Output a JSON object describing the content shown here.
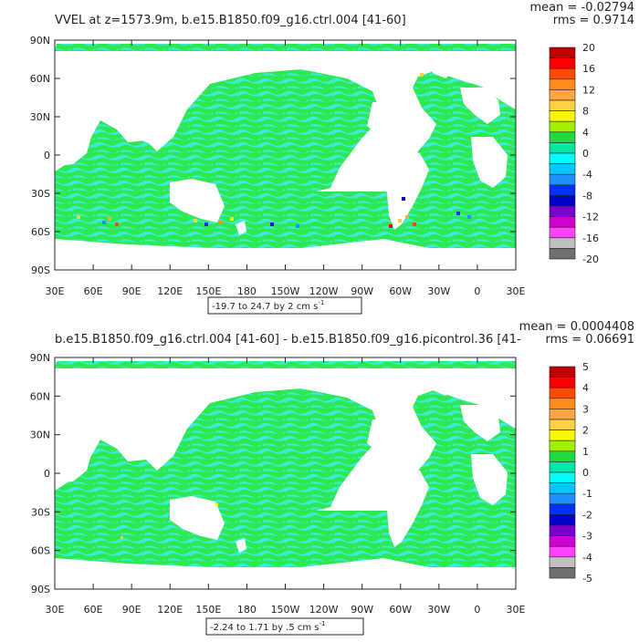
{
  "panels": [
    {
      "title": "VVEL at z=1573.9m, b.e15.B1850.f09_g16.ctrl.004 [41-60]",
      "mean_label": "mean = -0.02794",
      "rms_label": "rms = 0.9714",
      "range_label": "-19.7 to 24.7 by 2 cm s",
      "range_sup": "-1",
      "colorbar_labels": [
        "20",
        "16",
        "12",
        "8",
        "4",
        "0",
        "-4",
        "-8",
        "-12",
        "-16",
        "-20"
      ]
    },
    {
      "title": "b.e15.B1850.f09_g16.ctrl.004 [41-60] - b.e15.B1850.f09_g16.picontrol.36 [41-",
      "mean_label": "mean = 0.0004408",
      "rms_label": "rms = 0.06691",
      "range_label": "-2.24 to 1.71 by .5 cm s",
      "range_sup": "-1",
      "colorbar_labels": [
        "5",
        "4",
        "3",
        "2",
        "1",
        "0",
        "-1",
        "-2",
        "-3",
        "-4",
        "-5"
      ]
    }
  ],
  "lat_labels": [
    "90N",
    "60N",
    "30N",
    "0",
    "30S",
    "60S",
    "90S"
  ],
  "lon_labels": [
    "30E",
    "60E",
    "90E",
    "120E",
    "150E",
    "180",
    "150W",
    "120W",
    "90W",
    "60W",
    "30W",
    "0",
    "30E"
  ],
  "colorbar_colors": [
    "#c00000",
    "#ff0000",
    "#ff4a00",
    "#ff8c1a",
    "#ffa640",
    "#ffd040",
    "#f8f800",
    "#a0f000",
    "#20d840",
    "#00e8a8",
    "#00ffff",
    "#00c8ff",
    "#2090ff",
    "#0030ff",
    "#0000c8",
    "#7a00d0",
    "#d000d0",
    "#ff40ff",
    "#c0c0c0",
    "#707070"
  ],
  "map_colors": {
    "ocean_green": "#2ee850",
    "ocean_cyan": "#3cecd4",
    "land": "#ffffff",
    "frame": "#222222"
  }
}
